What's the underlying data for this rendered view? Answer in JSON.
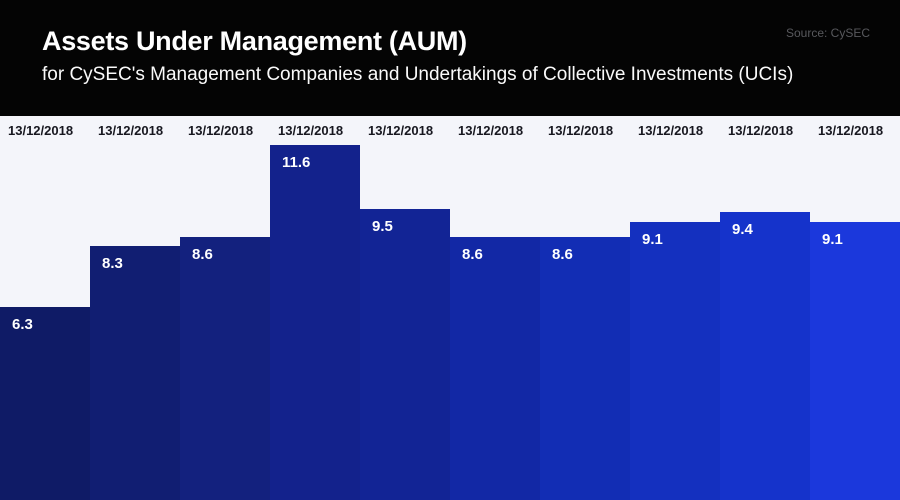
{
  "header": {
    "title": "Assets Under Management (AUM)",
    "subtitle": "for CySEC's Management Companies and Undertakings of Collective Investments (UCIs)",
    "source": "Source: CySEC"
  },
  "chart_data": {
    "type": "bar",
    "title": "Assets Under Management (AUM)",
    "subtitle": "for CySEC's Management Companies and Undertakings of Collective Investments (UCIs)",
    "source": "Source: CySEC",
    "categories": [
      "13/12/2018",
      "13/12/2018",
      "13/12/2018",
      "13/12/2018",
      "13/12/2018",
      "13/12/2018",
      "13/12/2018",
      "13/12/2018",
      "13/12/2018",
      "13/12/2018"
    ],
    "values": [
      6.3,
      8.3,
      8.6,
      11.6,
      9.5,
      8.6,
      8.6,
      9.1,
      9.4,
      9.1
    ],
    "value_labels": [
      "6.3",
      "8.3",
      "8.6",
      "11.6",
      "9.5",
      "8.6",
      "8.6",
      "9.1",
      "9.4",
      "9.1"
    ],
    "xlabel": "",
    "ylabel": "",
    "ylim": [
      0,
      12.5
    ],
    "grid": false,
    "legend": false,
    "bar_colors": [
      "#0f1b66",
      "#111e72",
      "#13217e",
      "#13228c",
      "#122495",
      "#1228a5",
      "#122db4",
      "#1430bf",
      "#1533cb",
      "#1b38dc"
    ],
    "value_label_color": "#ffffff",
    "date_label_color": "#17171f",
    "plot_background": "#f4f5fa",
    "header_background": "#040404"
  }
}
